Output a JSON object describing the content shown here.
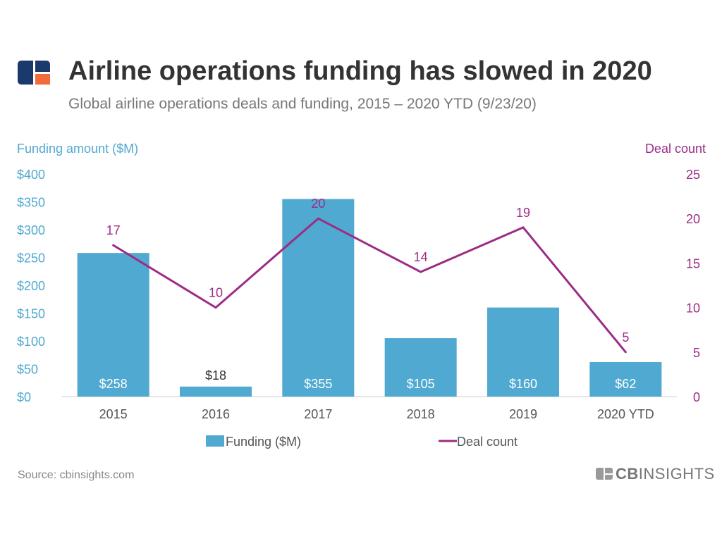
{
  "header": {
    "title": "Airline operations funding has slowed in 2020",
    "subtitle": "Global airline operations deals and funding, 2015 – 2020 YTD (9/23/20)"
  },
  "footer": {
    "source": "Source: cbinsights.com",
    "brand_bold": "CB",
    "brand_light": "INSIGHTS"
  },
  "icons": {
    "logo": "cb-insights-logo-icon",
    "brand_mark": "cb-insights-mark-icon"
  },
  "colors": {
    "bar": "#4fa9d0",
    "line": "#9c2c86",
    "left_axis": "#4fa9d0",
    "right_axis": "#9c2c86",
    "logo_dark": "#1a3a6b",
    "logo_orange": "#f26b3a"
  },
  "chart_data": {
    "type": "bar",
    "categories": [
      "2015",
      "2016",
      "2017",
      "2018",
      "2019",
      "2020 YTD"
    ],
    "series": [
      {
        "name": "Funding ($M)",
        "type": "bar",
        "axis": "left",
        "values": [
          258,
          18,
          355,
          105,
          160,
          62
        ],
        "labels": [
          "$258",
          "$18",
          "$355",
          "$105",
          "$160",
          "$62"
        ]
      },
      {
        "name": "Deal count",
        "type": "line",
        "axis": "right",
        "values": [
          17,
          10,
          20,
          14,
          19,
          5
        ],
        "labels": [
          "17",
          "10",
          "20",
          "14",
          "19",
          "5"
        ]
      }
    ],
    "left_axis": {
      "label": "Funding amount ($M)",
      "ylim": [
        0,
        400
      ],
      "ticks": [
        "$0",
        "$50",
        "$100",
        "$150",
        "$200",
        "$250",
        "$300",
        "$350",
        "$400"
      ]
    },
    "right_axis": {
      "label": "Deal count",
      "ylim": [
        0,
        25
      ],
      "ticks": [
        "0",
        "5",
        "10",
        "15",
        "20",
        "25"
      ]
    },
    "grid": false,
    "legend": "bottom-center"
  }
}
